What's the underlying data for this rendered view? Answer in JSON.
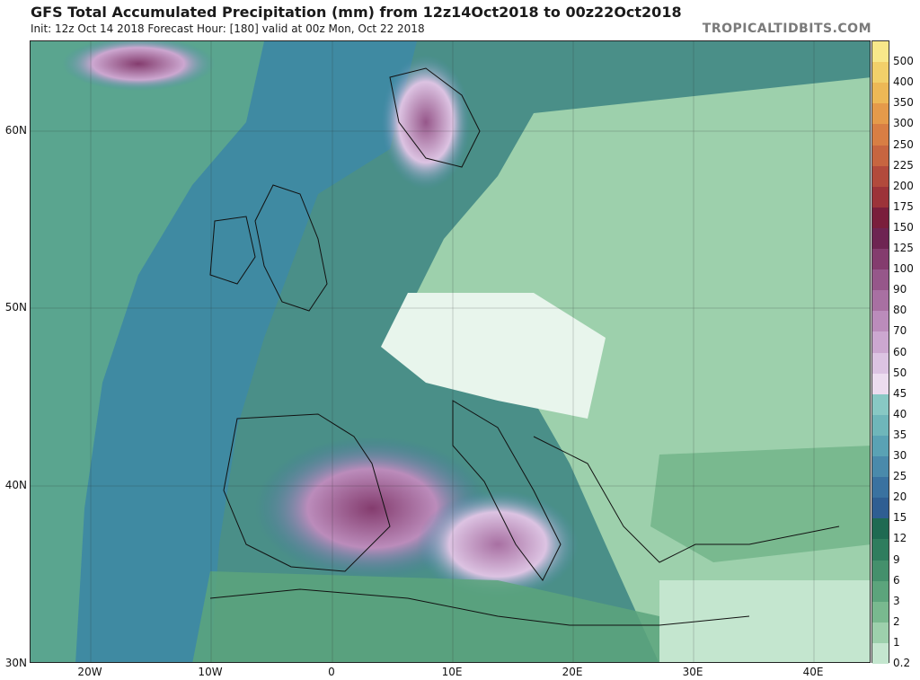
{
  "header": {
    "title": "GFS Total Accumulated Precipitation (mm) from 12z14Oct2018 to 00z22Oct2018",
    "subtitle": "Init: 12z Oct 14 2018   Forecast Hour: [180]   valid at 00z Mon, Oct 22 2018",
    "source": "TROPICALTIDBITS.COM"
  },
  "axes": {
    "lat_labels": [
      "60N",
      "50N",
      "40N",
      "30N"
    ],
    "lon_labels": [
      "20W",
      "10W",
      "0",
      "10E",
      "20E",
      "30E",
      "40E"
    ]
  },
  "colorbar": {
    "levels": [
      {
        "label": "500",
        "color": "#f8e88a"
      },
      {
        "label": "400",
        "color": "#f2d06a"
      },
      {
        "label": "350",
        "color": "#edb856"
      },
      {
        "label": "300",
        "color": "#e59a4a"
      },
      {
        "label": "250",
        "color": "#d87e44"
      },
      {
        "label": "225",
        "color": "#c76540"
      },
      {
        "label": "200",
        "color": "#b24a3c"
      },
      {
        "label": "175",
        "color": "#9c3339"
      },
      {
        "label": "150",
        "color": "#7a1e3c"
      },
      {
        "label": "125",
        "color": "#6e2452"
      },
      {
        "label": "100",
        "color": "#843c6e"
      },
      {
        "label": "90",
        "color": "#96578a"
      },
      {
        "label": "80",
        "color": "#a870a2"
      },
      {
        "label": "70",
        "color": "#bb8cbb"
      },
      {
        "label": "60",
        "color": "#cca7d0"
      },
      {
        "label": "50",
        "color": "#dcc3e2"
      },
      {
        "label": "45",
        "color": "#ecdcef"
      },
      {
        "label": "40",
        "color": "#88c8c4"
      },
      {
        "label": "35",
        "color": "#6fb6ba"
      },
      {
        "label": "30",
        "color": "#5aa2b4"
      },
      {
        "label": "25",
        "color": "#4a8aab"
      },
      {
        "label": "20",
        "color": "#3a72a0"
      },
      {
        "label": "15",
        "color": "#2f5e92"
      },
      {
        "label": "12",
        "color": "#1f6a52"
      },
      {
        "label": "9",
        "color": "#2f7d5e"
      },
      {
        "label": "6",
        "color": "#44906c"
      },
      {
        "label": "3",
        "color": "#5ca47c"
      },
      {
        "label": "2",
        "color": "#79b98f"
      },
      {
        "label": "1",
        "color": "#9dd0ac"
      },
      {
        "label": "0.2",
        "color": "#c4e6cf"
      }
    ]
  }
}
